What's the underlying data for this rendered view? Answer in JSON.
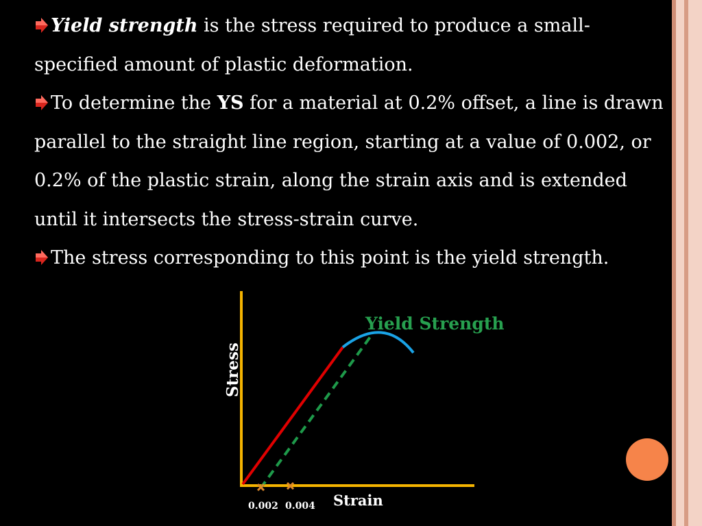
{
  "bullets": [
    {
      "lead": "Yield strength",
      "text": " is the stress required to produce a small-specified amount of plastic deformation."
    },
    {
      "pre": "To determine the ",
      "bold": "YS",
      "post": " for a material at 0.2% offset, a line is drawn parallel to the straight line region, starting at a value of 0.002, or 0.2% of the plastic strain, along the strain axis and is extended until it intersects the stress-strain curve."
    },
    {
      "text": "The stress corresponding to this point is the yield strength."
    }
  ],
  "diagram": {
    "ylabel": "Stress",
    "xlabel": "Strain",
    "annotation": "Yield Strength",
    "ticks": [
      "0.002",
      "0.004"
    ]
  },
  "colors": {
    "axis": "#f5b400",
    "elastic_line": "#e00000",
    "plastic_curve": "#1aa3e6",
    "offset_line": "#1e9a4a",
    "annotation": "#27a04f",
    "tick_marker": "#e08a2a",
    "bullet": "#d8261e",
    "accent_dot": "#f6844a"
  }
}
